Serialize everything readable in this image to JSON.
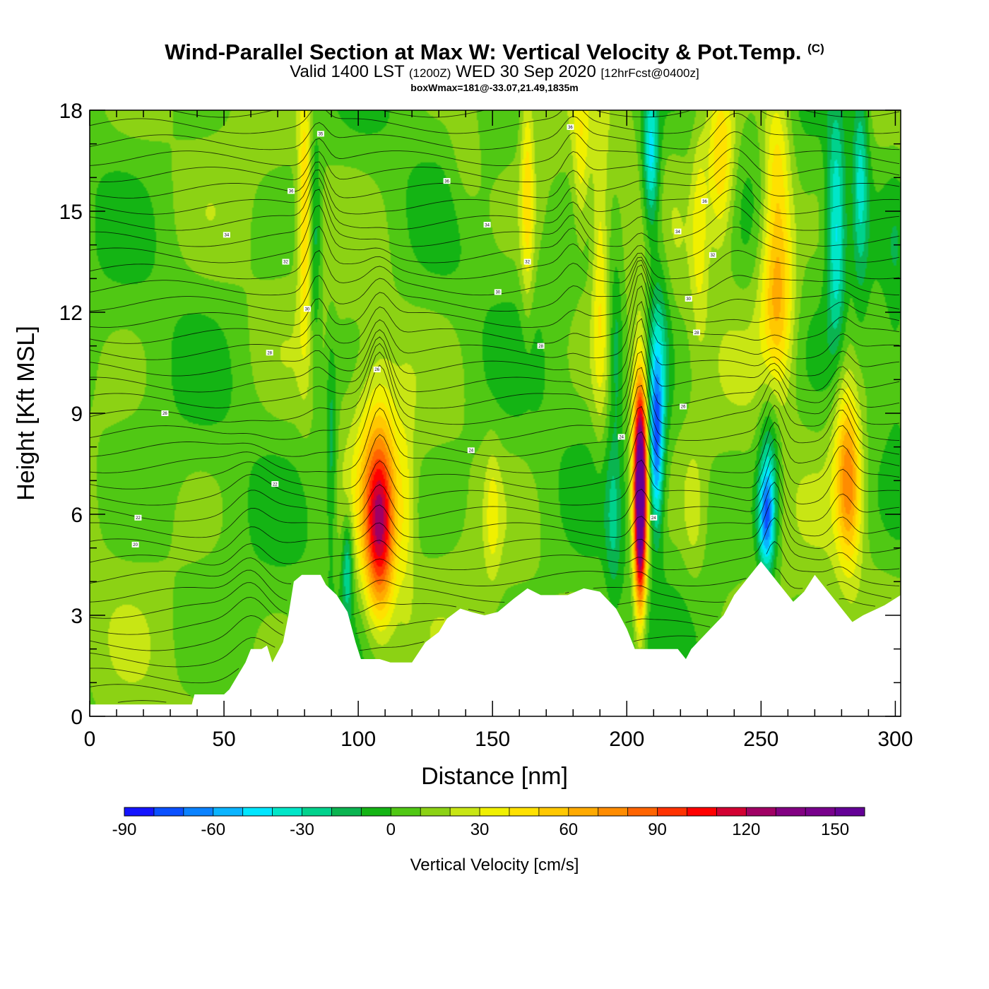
{
  "chart_data": {
    "type": "heatmap",
    "title": "Wind-Parallel Section at Max W: Vertical Velocity & Pot.Temp.",
    "title_mark": "(C)",
    "subtitle_main": "Valid 1400 LST",
    "subtitle_utc": "(1200Z)",
    "subtitle_date": "WED 30 Sep 2020",
    "subtitle_fcst": "[12hrFcst@0400z]",
    "subtitle_box": "boxWmax=181@-33.07,21.49,1835m",
    "xlabel": "Distance [nm]",
    "ylabel": "Height [Kft MSL]",
    "xlim": [
      0,
      302
    ],
    "ylim": [
      0,
      18
    ],
    "x_ticks": [
      "0",
      "50",
      "100",
      "150",
      "200",
      "250",
      "300"
    ],
    "y_ticks": [
      "0",
      "3",
      "6",
      "9",
      "12",
      "15",
      "18"
    ],
    "colorbar": {
      "label": "Vertical Velocity [cm/s]",
      "range": [
        -90,
        160
      ],
      "step": 10,
      "tick_labels": [
        "-90",
        "-60",
        "-30",
        "0",
        "30",
        "60",
        "90",
        "120",
        "150"
      ],
      "colors": [
        "#1414ff",
        "#0a50ff",
        "#0a82ff",
        "#0ab4ff",
        "#00e6ff",
        "#00e6c8",
        "#00d28c",
        "#0ab450",
        "#14b414",
        "#50c814",
        "#8cd214",
        "#c8e614",
        "#f0f000",
        "#ffe100",
        "#ffc800",
        "#ffaa00",
        "#ff8c00",
        "#ff6400",
        "#ff3200",
        "#ff0000",
        "#d20032",
        "#a00064",
        "#820082",
        "#78008c",
        "#640096"
      ]
    },
    "terrain_kft": [
      [
        0,
        0.35
      ],
      [
        38,
        0.35
      ],
      [
        39,
        0.65
      ],
      [
        50,
        0.65
      ],
      [
        52,
        0.8
      ],
      [
        55,
        1.2
      ],
      [
        58,
        1.6
      ],
      [
        60,
        2.0
      ],
      [
        64,
        2.0
      ],
      [
        66,
        2.1
      ],
      [
        68,
        1.6
      ],
      [
        72,
        2.2
      ],
      [
        74,
        3.0
      ],
      [
        76,
        4.0
      ],
      [
        79,
        4.2
      ],
      [
        86,
        4.2
      ],
      [
        88,
        3.9
      ],
      [
        92,
        3.6
      ],
      [
        96,
        3.1
      ],
      [
        99,
        2.2
      ],
      [
        101,
        1.7
      ],
      [
        108,
        1.7
      ],
      [
        112,
        1.6
      ],
      [
        120,
        1.6
      ],
      [
        125,
        2.2
      ],
      [
        130,
        2.5
      ],
      [
        133,
        2.9
      ],
      [
        138,
        3.2
      ],
      [
        142,
        3.1
      ],
      [
        147,
        3.0
      ],
      [
        152,
        3.1
      ],
      [
        158,
        3.5
      ],
      [
        163,
        3.8
      ],
      [
        168,
        3.6
      ],
      [
        174,
        3.6
      ],
      [
        178,
        3.6
      ],
      [
        184,
        3.8
      ],
      [
        190,
        3.7
      ],
      [
        196,
        3.2
      ],
      [
        200,
        2.6
      ],
      [
        203,
        2.0
      ],
      [
        211,
        2.0
      ],
      [
        219,
        2.0
      ],
      [
        222,
        1.7
      ],
      [
        224,
        2.0
      ],
      [
        230,
        2.5
      ],
      [
        236,
        3.0
      ],
      [
        240,
        3.6
      ],
      [
        244,
        4.0
      ],
      [
        250,
        4.6
      ],
      [
        253,
        4.3
      ],
      [
        258,
        3.8
      ],
      [
        262,
        3.4
      ],
      [
        266,
        3.7
      ],
      [
        270,
        4.2
      ],
      [
        274,
        3.8
      ],
      [
        280,
        3.2
      ],
      [
        284,
        2.8
      ],
      [
        288,
        3.0
      ],
      [
        296,
        3.3
      ],
      [
        302,
        3.6
      ]
    ],
    "w_features": [
      {
        "x": 108,
        "z": 5.5,
        "sx": 5.5,
        "sz": 2.6,
        "w": 80
      },
      {
        "x": 107,
        "z": 6.8,
        "sx": 9,
        "sz": 3.6,
        "w": 35
      },
      {
        "x": 205,
        "z": 7.2,
        "sx": 2.6,
        "sz": 3.0,
        "w": 150
      },
      {
        "x": 205,
        "z": 5.0,
        "sx": 2.0,
        "sz": 2.5,
        "w": 60
      },
      {
        "x": 211,
        "z": 8.0,
        "sx": 2.6,
        "sz": 2.6,
        "w": -70
      },
      {
        "x": 212,
        "z": 11.0,
        "sx": 4,
        "sz": 3.5,
        "w": -30
      },
      {
        "x": 209,
        "z": 16.5,
        "sx": 3,
        "sz": 2.2,
        "w": -55
      },
      {
        "x": 256,
        "z": 12.5,
        "sx": 6,
        "sz": 2.8,
        "w": 55
      },
      {
        "x": 256,
        "z": 16.5,
        "sx": 5,
        "sz": 2.5,
        "w": 35
      },
      {
        "x": 252,
        "z": 5.8,
        "sx": 3,
        "sz": 1.6,
        "w": -65
      },
      {
        "x": 253,
        "z": 7.5,
        "sx": 4,
        "sz": 2.5,
        "w": -30
      },
      {
        "x": 283,
        "z": 6.8,
        "sx": 4.5,
        "sz": 2.4,
        "w": 50
      },
      {
        "x": 281,
        "z": 8.5,
        "sx": 5,
        "sz": 3,
        "w": 25
      },
      {
        "x": 278,
        "z": 14.5,
        "sx": 3.5,
        "sz": 3.5,
        "w": -50
      },
      {
        "x": 287,
        "z": 16,
        "sx": 3,
        "sz": 3,
        "w": -40
      },
      {
        "x": 235,
        "z": 16.5,
        "sx": 5,
        "sz": 2.5,
        "w": 45
      },
      {
        "x": 227,
        "z": 14.5,
        "sx": 3,
        "sz": 3,
        "w": 25
      },
      {
        "x": 190,
        "z": 13,
        "sx": 3,
        "sz": 4.5,
        "w": 30
      },
      {
        "x": 196,
        "z": 11,
        "sx": 2.5,
        "sz": 2.5,
        "w": -25
      },
      {
        "x": 163,
        "z": 15.5,
        "sx": 2.5,
        "sz": 3.5,
        "w": 35
      },
      {
        "x": 80,
        "z": 15,
        "sx": 2.5,
        "sz": 4,
        "w": 40
      },
      {
        "x": 84,
        "z": 14,
        "sx": 2,
        "sz": 3.5,
        "w": -25
      },
      {
        "x": 90,
        "z": 8,
        "sx": 2,
        "sz": 3,
        "w": -25
      },
      {
        "x": 96,
        "z": 4.5,
        "sx": 2,
        "sz": 1.5,
        "w": -40
      },
      {
        "x": 118,
        "z": 6,
        "sx": 3,
        "sz": 3,
        "w": 15
      },
      {
        "x": 183,
        "z": 16.5,
        "sx": 3,
        "sz": 2.5,
        "w": 25
      },
      {
        "x": 140,
        "z": 16.5,
        "sx": 6,
        "sz": 2,
        "w": 12
      },
      {
        "x": 150,
        "z": 6,
        "sx": 3,
        "sz": 2,
        "w": 20
      },
      {
        "x": 195,
        "z": 5.8,
        "sx": 3,
        "sz": 2.5,
        "w": -22
      },
      {
        "x": 225,
        "z": 6,
        "sx": 4,
        "sz": 2,
        "w": 15
      },
      {
        "x": 300,
        "z": 12,
        "sx": 4,
        "sz": 4,
        "w": -10
      }
    ],
    "theta_labels": [
      {
        "x": 86,
        "z": 17.3,
        "text": "35"
      },
      {
        "x": 179,
        "z": 17.5,
        "text": "36"
      },
      {
        "x": 133,
        "z": 15.9,
        "text": "36"
      },
      {
        "x": 75,
        "z": 15.6,
        "text": "36"
      },
      {
        "x": 229,
        "z": 15.3,
        "text": "36"
      },
      {
        "x": 51,
        "z": 14.3,
        "text": "34"
      },
      {
        "x": 148,
        "z": 14.6,
        "text": "34"
      },
      {
        "x": 219,
        "z": 14.4,
        "text": "34"
      },
      {
        "x": 73,
        "z": 13.5,
        "text": "32"
      },
      {
        "x": 163,
        "z": 13.5,
        "text": "32"
      },
      {
        "x": 232,
        "z": 13.7,
        "text": "32"
      },
      {
        "x": 81,
        "z": 12.1,
        "text": "30"
      },
      {
        "x": 152,
        "z": 12.6,
        "text": "30"
      },
      {
        "x": 223,
        "z": 12.4,
        "text": "30"
      },
      {
        "x": 67,
        "z": 10.8,
        "text": "28"
      },
      {
        "x": 168,
        "z": 11.0,
        "text": "28"
      },
      {
        "x": 226,
        "z": 11.4,
        "text": "28"
      },
      {
        "x": 107,
        "z": 10.3,
        "text": "26"
      },
      {
        "x": 221,
        "z": 9.2,
        "text": "26"
      },
      {
        "x": 28,
        "z": 9.0,
        "text": "26"
      },
      {
        "x": 142,
        "z": 7.9,
        "text": "24"
      },
      {
        "x": 198,
        "z": 8.3,
        "text": "24"
      },
      {
        "x": 69,
        "z": 6.9,
        "text": "22"
      },
      {
        "x": 18,
        "z": 5.9,
        "text": "22"
      },
      {
        "x": 210,
        "z": 5.9,
        "text": "24"
      },
      {
        "x": 17,
        "z": 5.1,
        "text": "20"
      }
    ]
  }
}
